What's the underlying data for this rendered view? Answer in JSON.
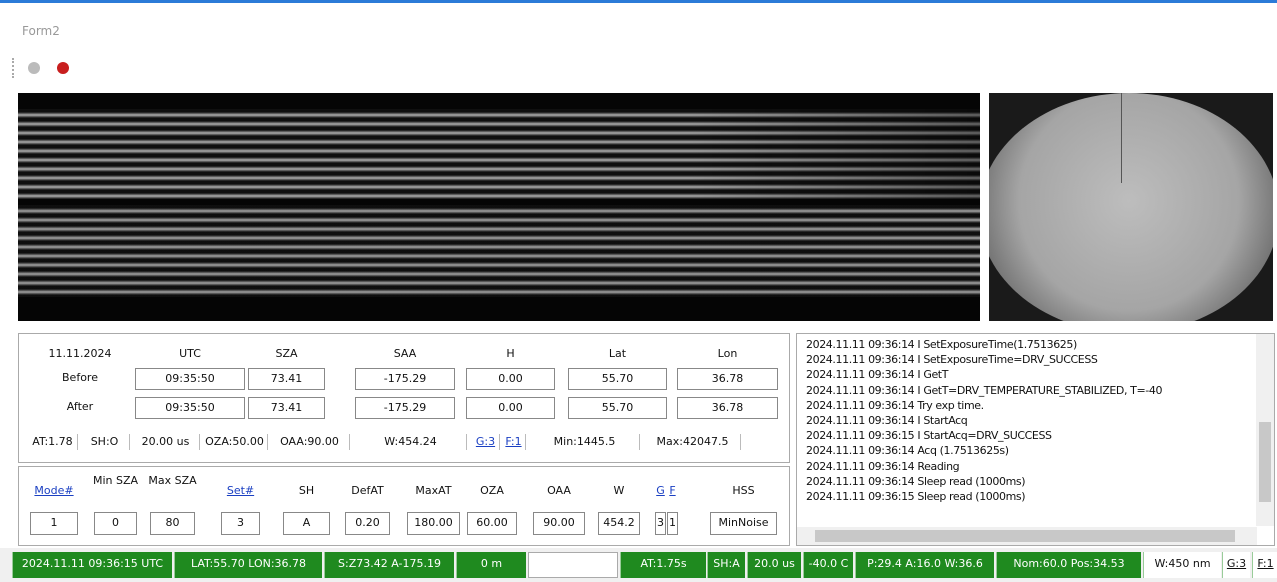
{
  "window": {
    "title": "Form2"
  },
  "info_panel": {
    "date": "11.11.2024",
    "headers": [
      "UTC",
      "SZA",
      "SAA",
      "H",
      "Lat",
      "Lon"
    ],
    "rows": [
      {
        "label": "Before",
        "values": [
          "09:35:50",
          "73.41",
          "-175.29",
          "0.00",
          "55.70",
          "36.78"
        ]
      },
      {
        "label": "After",
        "values": [
          "09:35:50",
          "73.41",
          "-175.29",
          "0.00",
          "55.70",
          "36.78"
        ]
      }
    ],
    "status": [
      "AT:1.78",
      "SH:O",
      "20.00 us",
      "OZA:50.00",
      "OAA:90.00",
      "W:454.24",
      "G:3",
      "F:1",
      "Min:1445.5",
      "Max:42047.5"
    ]
  },
  "settings": {
    "headers": [
      "Mode#",
      "Min SZA",
      "Max SZA",
      "Set#",
      "SH",
      "DefAT",
      "MaxAT",
      "OZA",
      "OAA",
      "W",
      "G",
      "F",
      "HSS"
    ],
    "values": [
      "1",
      "0",
      "80",
      "3",
      "A",
      "0.20",
      "180.00",
      "60.00",
      "90.00",
      "454.2",
      "3",
      "1",
      "MinNoise"
    ]
  },
  "log": [
    "2024.11.11 09:36:14 I SetExposureTime(1.7513625)",
    "2024.11.11 09:36:14 I SetExposureTime=DRV_SUCCESS",
    "2024.11.11 09:36:14 I GetT",
    "2024.11.11 09:36:14 I GetT=DRV_TEMPERATURE_STABILIZED, T=-40",
    "2024.11.11 09:36:14 Try exp time.",
    "2024.11.11 09:36:14 I StartAcq",
    "2024.11.11 09:36:15 I StartAcq=DRV_SUCCESS",
    "2024.11.11 09:36:14 Acq (1.7513625s)",
    "2024.11.11 09:36:14 Reading",
    "2024.11.11 09:36:14 Sleep read (1000ms)",
    "2024.11.11 09:36:15 Sleep read (1000ms)"
  ],
  "status_bar": [
    "2024.11.11 09:36:15 UTC",
    "LAT:55.70 LON:36.78",
    "S:Z73.42 A-175.19",
    "0 m",
    "AT:1.75s",
    "SH:A",
    "20.0 us",
    "-40.0 C",
    "P:29.4 A:16.0 W:36.6",
    "Nom:60.0 Pos:34.53",
    "W:450 nm",
    "G:3",
    "F:1"
  ]
}
